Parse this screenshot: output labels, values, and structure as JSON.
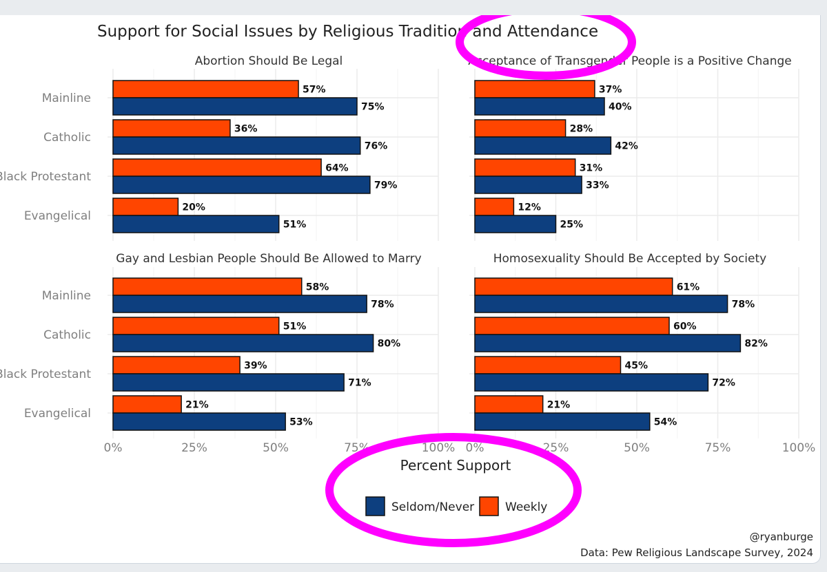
{
  "chart_data": {
    "type": "bar",
    "title": "Support for Social Issues by Religious Tradition and Attendance",
    "xlabel": "Percent Support",
    "xlim": [
      0,
      100
    ],
    "xticks": [
      "0%",
      "25%",
      "50%",
      "75%",
      "100%"
    ],
    "categories": [
      "Mainline",
      "Catholic",
      "Black Protestant",
      "Evangelical"
    ],
    "legend": [
      {
        "name": "Seldom/Never",
        "color": "#0d3f7f"
      },
      {
        "name": "Weekly",
        "color": "#ff4500"
      }
    ],
    "panels": [
      {
        "title": "Abortion Should Be Legal",
        "series": [
          {
            "name": "Weekly",
            "values": [
              57,
              36,
              64,
              20
            ]
          },
          {
            "name": "Seldom/Never",
            "values": [
              75,
              76,
              79,
              51
            ]
          }
        ]
      },
      {
        "title": "Acceptance of Transgender People is a Positive Change",
        "series": [
          {
            "name": "Weekly",
            "values": [
              37,
              28,
              31,
              12
            ]
          },
          {
            "name": "Seldom/Never",
            "values": [
              40,
              42,
              33,
              25
            ]
          }
        ]
      },
      {
        "title": "Gay and Lesbian People Should Be Allowed to Marry",
        "series": [
          {
            "name": "Weekly",
            "values": [
              58,
              51,
              39,
              21
            ]
          },
          {
            "name": "Seldom/Never",
            "values": [
              78,
              80,
              71,
              53
            ]
          }
        ]
      },
      {
        "title": "Homosexuality Should Be Accepted by Society",
        "series": [
          {
            "name": "Weekly",
            "values": [
              61,
              60,
              45,
              21
            ]
          },
          {
            "name": "Seldom/Never",
            "values": [
              78,
              82,
              72,
              54
            ]
          }
        ]
      }
    ],
    "caption": [
      "@ryanburge",
      "Data: Pew Religious Landscape Survey, 2024"
    ]
  }
}
